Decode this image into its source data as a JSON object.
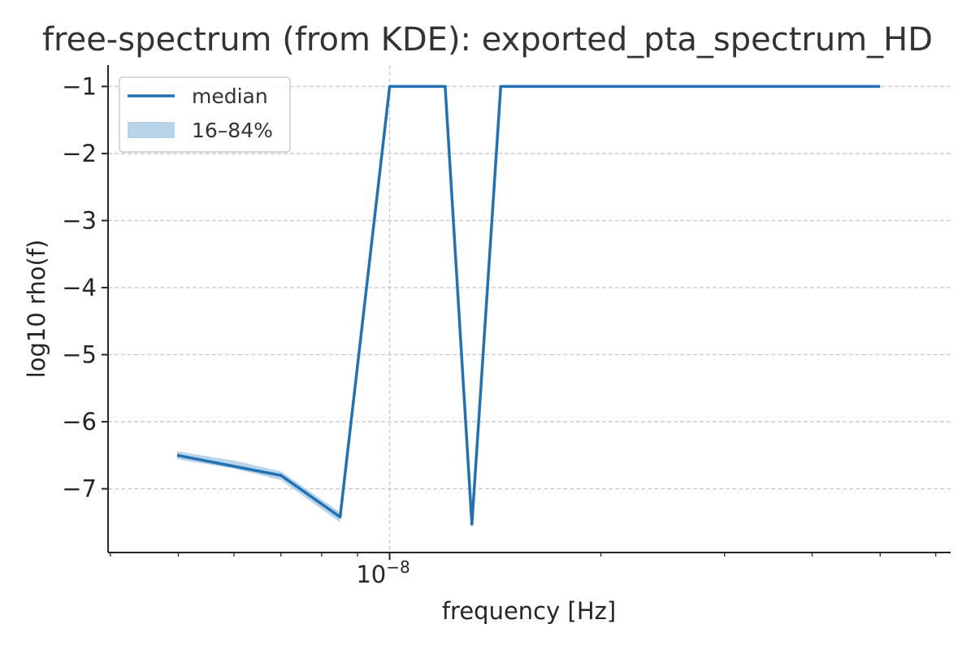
{
  "chart_data": {
    "type": "line",
    "title": "free-spectrum (from KDE): exported_pta_spectrum_HD",
    "xlabel": "frequency [Hz]",
    "ylabel": "log10 rho(f)",
    "xscale": "log",
    "xlim": [
      3.97e-09,
      6.3e-08
    ],
    "ylim": [
      -7.95,
      -0.68
    ],
    "x_tick_labels": [
      {
        "value": 1e-08,
        "base": "10",
        "exp": "−8"
      }
    ],
    "y_ticks": [
      -1,
      -2,
      -3,
      -4,
      -5,
      -6,
      -7
    ],
    "y_tick_labels": [
      "−1",
      "−2",
      "−3",
      "−4",
      "−5",
      "−6",
      "−7"
    ],
    "grid": true,
    "legend_position": "top-left",
    "colors": {
      "median": "#2171b5",
      "band": "#b9d3e8"
    },
    "series": [
      {
        "name": "median",
        "x": [
          4.98e-09,
          7e-09,
          8.5e-09,
          1e-08,
          1.2e-08,
          1.31e-08,
          1.44e-08,
          5e-08
        ],
        "values": [
          -6.5,
          -6.8,
          -7.42,
          -1.0,
          -1.0,
          -7.53,
          -1.0,
          -1.0
        ]
      },
      {
        "name": "16–84%",
        "x": [
          4.98e-09,
          6e-09,
          7e-09,
          8.5e-09
        ],
        "lower": [
          -6.56,
          -6.7,
          -6.87,
          -7.5
        ],
        "upper": [
          -6.44,
          -6.58,
          -6.74,
          -7.35
        ]
      }
    ]
  }
}
